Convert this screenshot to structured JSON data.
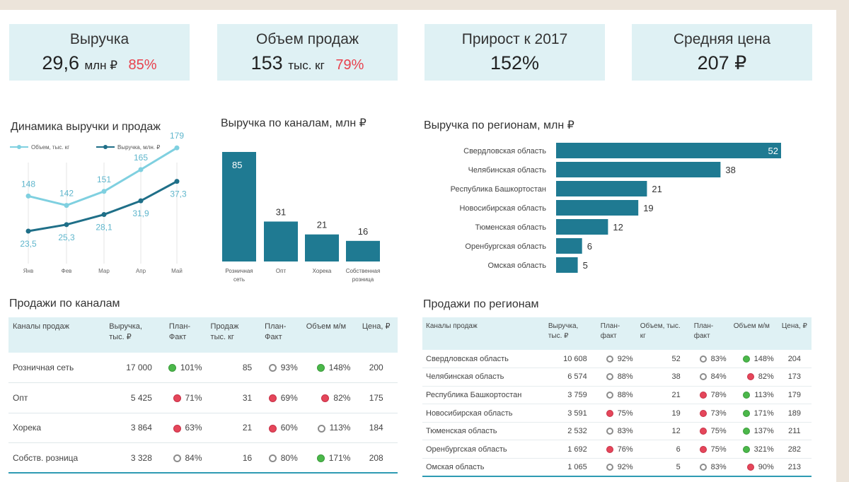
{
  "kpis": [
    {
      "title": "Выручка",
      "value": "29,6",
      "unit": "млн ₽",
      "pct": "85%"
    },
    {
      "title": "Объем продаж",
      "value": "153",
      "unit": "тыс. кг",
      "pct": "79%"
    },
    {
      "title": "Прирост к 2017",
      "value": "152%",
      "unit": "",
      "pct": ""
    },
    {
      "title": "Средняя цена",
      "value": "207 ₽",
      "unit": "",
      "pct": ""
    }
  ],
  "colors": {
    "volume_line": "#7fd0e0",
    "revenue_line": "#1f6f88",
    "bar": "#1f7a92",
    "kpi_bg": "#dff1f4",
    "pct_red": "#e8414d",
    "dot_green": "#4bb84a",
    "dot_red": "#e5465a",
    "dot_grey": "#8c8c8c"
  },
  "chart_data": [
    {
      "type": "line",
      "title": "Динамика выручки и продаж",
      "x": [
        "Янв",
        "Фев",
        "Мар",
        "Апр",
        "Май"
      ],
      "series": [
        {
          "name": "Объем, тыс. кг",
          "values": [
            148,
            142,
            151,
            165,
            179
          ],
          "labels": [
            "148",
            "142",
            "151",
            "165",
            "179"
          ]
        },
        {
          "name": "Выручка, млн. ₽",
          "values": [
            23.5,
            25.3,
            28.1,
            31.9,
            37.3
          ],
          "labels": [
            "23,5",
            "25,3",
            "28,1",
            "31,9",
            "37,3"
          ]
        }
      ],
      "legend": "top-left",
      "grid": "vertical"
    },
    {
      "type": "bar",
      "title": "Выручка по каналам, млн ₽",
      "categories": [
        "Розничная сеть",
        "Опт",
        "Хорека",
        "Собственная розница"
      ],
      "values": [
        85,
        31,
        21,
        16
      ]
    },
    {
      "type": "bar",
      "orientation": "horizontal",
      "title": "Выручка по регионам, млн ₽",
      "categories": [
        "Свердловская область",
        "Челябинская область",
        "Республика Башкортостан",
        "Новосибирская область",
        "Тюменская область",
        "Оренбургская область",
        "Омская область"
      ],
      "values": [
        52,
        38,
        21,
        19,
        12,
        6,
        5
      ]
    }
  ],
  "channels_table": {
    "title": "Продажи по каналам",
    "headers": [
      "Каналы продаж",
      "Выручка, тыс. ₽",
      "План-Факт",
      "Продаж тыс. кг",
      "План-Факт",
      "Объем м/м",
      "Цена, ₽"
    ],
    "rows": [
      {
        "name": "Розничная сеть",
        "revenue": "17 000",
        "pf1": "101%",
        "pf1_status": "green",
        "sales": "85",
        "pf2": "93%",
        "pf2_status": "grey",
        "vol": "148%",
        "vol_status": "green",
        "price": "200"
      },
      {
        "name": "Опт",
        "revenue": "5 425",
        "pf1": "71%",
        "pf1_status": "red",
        "sales": "31",
        "pf2": "69%",
        "pf2_status": "red",
        "vol": "82%",
        "vol_status": "red",
        "price": "175"
      },
      {
        "name": "Хорека",
        "revenue": "3 864",
        "pf1": "63%",
        "pf1_status": "red",
        "sales": "21",
        "pf2": "60%",
        "pf2_status": "red",
        "vol": "113%",
        "vol_status": "grey",
        "price": "184"
      },
      {
        "name": "Собств. розница",
        "revenue": "3 328",
        "pf1": "84%",
        "pf1_status": "grey",
        "sales": "16",
        "pf2": "80%",
        "pf2_status": "grey",
        "vol": "171%",
        "vol_status": "green",
        "price": "208"
      }
    ]
  },
  "regions_table": {
    "title": "Продажи по регионам",
    "headers": [
      "Каналы продаж",
      "Выручка, тыс. ₽",
      "План-факт",
      "Объем, тыс. кг",
      "План-факт",
      "Объем м/м",
      "Цена, ₽"
    ],
    "rows": [
      {
        "name": "Свердловская область",
        "revenue": "10 608",
        "pf1": "92%",
        "pf1_status": "grey",
        "sales": "52",
        "pf2": "83%",
        "pf2_status": "grey",
        "vol": "148%",
        "vol_status": "green",
        "price": "204"
      },
      {
        "name": "Челябинская область",
        "revenue": "6 574",
        "pf1": "88%",
        "pf1_status": "grey",
        "sales": "38",
        "pf2": "84%",
        "pf2_status": "grey",
        "vol": "82%",
        "vol_status": "red",
        "price": "173"
      },
      {
        "name": "Республика Башкортостан",
        "revenue": "3 759",
        "pf1": "88%",
        "pf1_status": "grey",
        "sales": "21",
        "pf2": "78%",
        "pf2_status": "red",
        "vol": "113%",
        "vol_status": "green",
        "price": "179"
      },
      {
        "name": "Новосибирская область",
        "revenue": "3 591",
        "pf1": "75%",
        "pf1_status": "red",
        "sales": "19",
        "pf2": "73%",
        "pf2_status": "red",
        "vol": "171%",
        "vol_status": "green",
        "price": "189"
      },
      {
        "name": "Тюменская область",
        "revenue": "2 532",
        "pf1": "83%",
        "pf1_status": "grey",
        "sales": "12",
        "pf2": "75%",
        "pf2_status": "red",
        "vol": "137%",
        "vol_status": "green",
        "price": "211"
      },
      {
        "name": "Оренбургская область",
        "revenue": "1 692",
        "pf1": "76%",
        "pf1_status": "red",
        "sales": "6",
        "pf2": "75%",
        "pf2_status": "red",
        "vol": "321%",
        "vol_status": "green",
        "price": "282"
      },
      {
        "name": "Омская область",
        "revenue": "1 065",
        "pf1": "92%",
        "pf1_status": "grey",
        "sales": "5",
        "pf2": "83%",
        "pf2_status": "grey",
        "vol": "90%",
        "vol_status": "red",
        "price": "213"
      }
    ]
  }
}
